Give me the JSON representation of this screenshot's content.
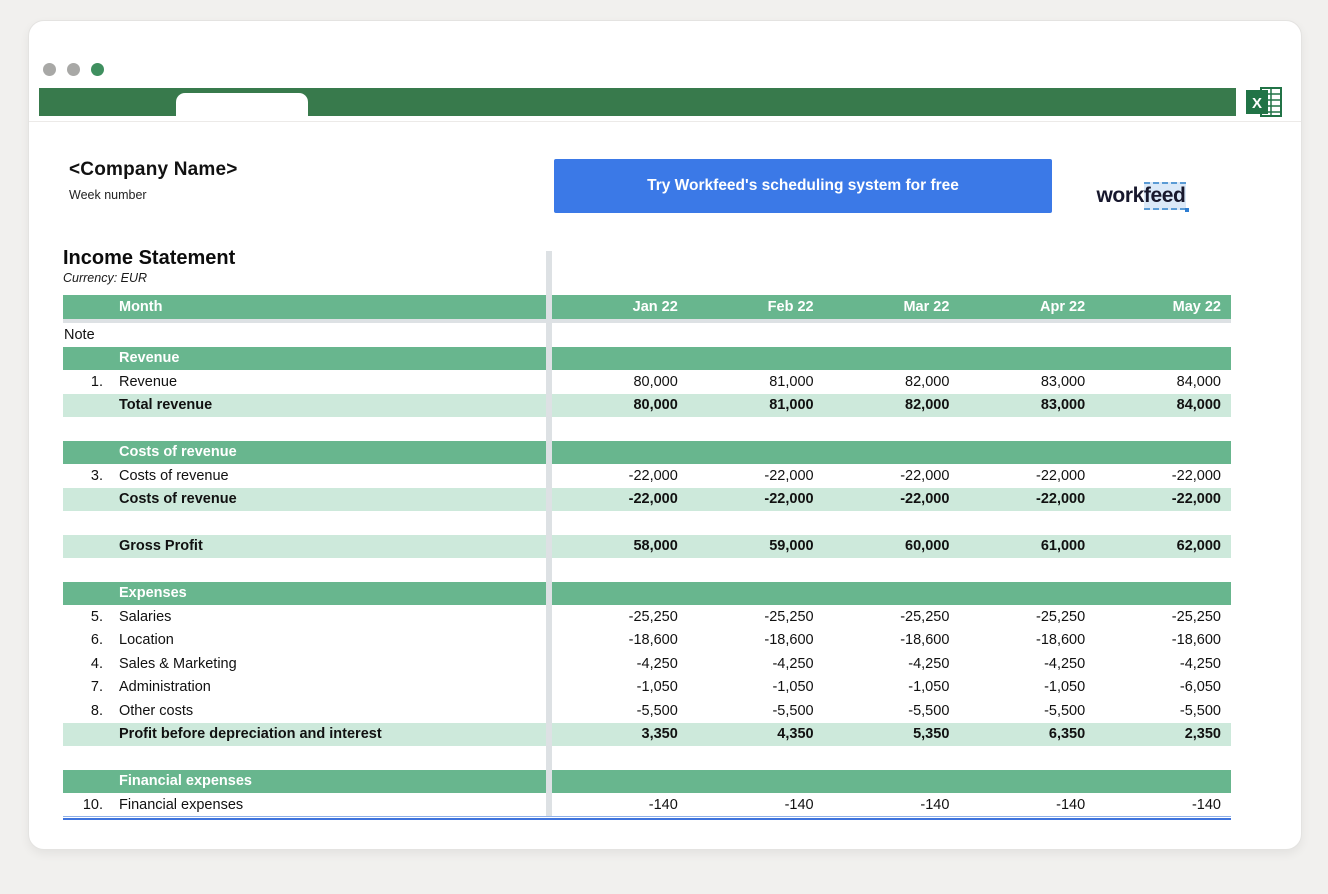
{
  "window": {
    "controls": [
      "close",
      "minimize",
      "zoom"
    ]
  },
  "header": {
    "company_name": "<Company Name>",
    "week_label": "Week number",
    "cta_label": "Try Workfeed's scheduling system for free",
    "logo": {
      "part1": "work",
      "part2": "feed"
    }
  },
  "sheet": {
    "title": "Income Statement",
    "subtitle": "Currency: EUR",
    "columns": [
      "Jan 22",
      "Feb 22",
      "Mar 22",
      "Apr 22",
      "May 22"
    ],
    "rows": [
      {
        "type": "month",
        "label": "Month"
      },
      {
        "type": "hline"
      },
      {
        "type": "note",
        "label": "Note"
      },
      {
        "type": "section",
        "label": "Revenue"
      },
      {
        "type": "item",
        "num": "1.",
        "label": "Revenue",
        "values": [
          "80,000",
          "81,000",
          "82,000",
          "83,000",
          "84,000"
        ]
      },
      {
        "type": "total",
        "label": "Total revenue",
        "values": [
          "80,000",
          "81,000",
          "82,000",
          "83,000",
          "84,000"
        ]
      },
      {
        "type": "gap"
      },
      {
        "type": "section",
        "label": "Costs of revenue"
      },
      {
        "type": "item",
        "num": "3.",
        "label": "Costs of revenue",
        "values": [
          "-22,000",
          "-22,000",
          "-22,000",
          "-22,000",
          "-22,000"
        ]
      },
      {
        "type": "total",
        "label": "Costs of revenue",
        "values": [
          "-22,000",
          "-22,000",
          "-22,000",
          "-22,000",
          "-22,000"
        ]
      },
      {
        "type": "gap"
      },
      {
        "type": "total",
        "label": "Gross Profit",
        "values": [
          "58,000",
          "59,000",
          "60,000",
          "61,000",
          "62,000"
        ]
      },
      {
        "type": "gap"
      },
      {
        "type": "section",
        "label": "Expenses"
      },
      {
        "type": "item",
        "num": "5.",
        "label": "Salaries",
        "values": [
          "-25,250",
          "-25,250",
          "-25,250",
          "-25,250",
          "-25,250"
        ]
      },
      {
        "type": "item",
        "num": "6.",
        "label": "Location",
        "values": [
          "-18,600",
          "-18,600",
          "-18,600",
          "-18,600",
          "-18,600"
        ]
      },
      {
        "type": "item",
        "num": "4.",
        "label": "Sales & Marketing",
        "values": [
          "-4,250",
          "-4,250",
          "-4,250",
          "-4,250",
          "-4,250"
        ]
      },
      {
        "type": "item",
        "num": "7.",
        "label": "Administration",
        "values": [
          "-1,050",
          "-1,050",
          "-1,050",
          "-1,050",
          "-6,050"
        ]
      },
      {
        "type": "item",
        "num": "8.",
        "label": "Other costs",
        "values": [
          "-5,500",
          "-5,500",
          "-5,500",
          "-5,500",
          "-5,500"
        ]
      },
      {
        "type": "total",
        "label": "Profit before depreciation and interest",
        "values": [
          "3,350",
          "4,350",
          "5,350",
          "6,350",
          "2,350"
        ]
      },
      {
        "type": "gap"
      },
      {
        "type": "section",
        "label": "Financial expenses"
      },
      {
        "type": "item",
        "num": "10.",
        "label": "Financial expenses",
        "values": [
          "-140",
          "-140",
          "-140",
          "-140",
          "-140"
        ]
      }
    ]
  },
  "colors": {
    "ribbon_green": "#387a4c",
    "table_header_green": "#68b68e",
    "table_total_green": "#cde9db",
    "cta_blue": "#3b79e7",
    "bottom_rule_blue": "#3f74dd",
    "excel_green": "#217346",
    "divider_gray": "#dde1e4",
    "traffic_light_gray": "#a8a8a6",
    "traffic_light_green": "#3f8f5f"
  }
}
